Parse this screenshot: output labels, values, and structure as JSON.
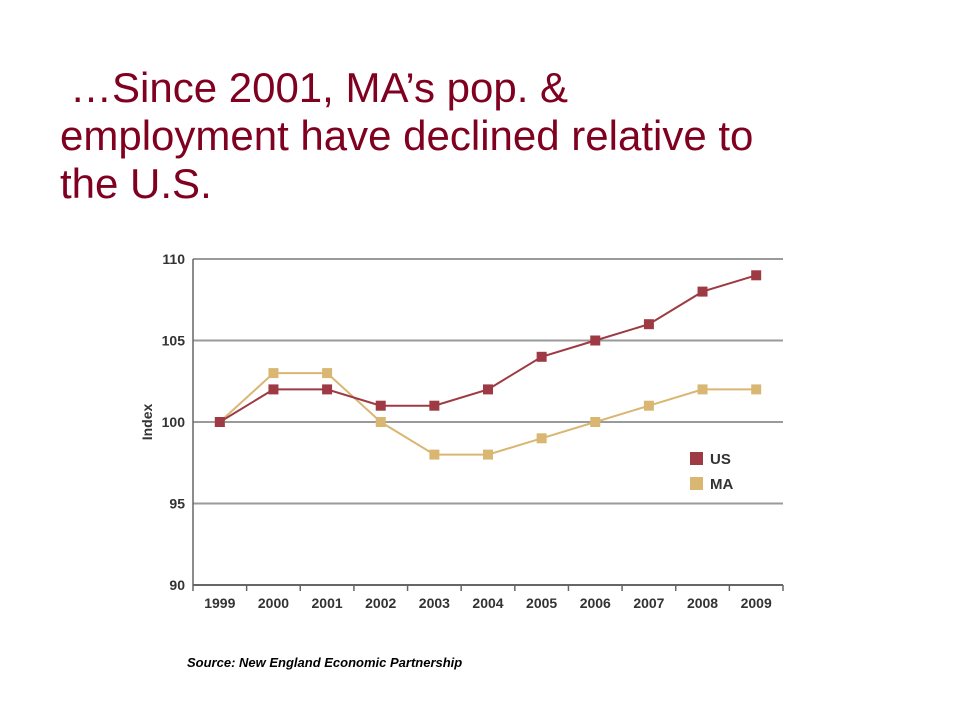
{
  "slide": {
    "title_line1": "…Since 2001, MA’s pop. &",
    "title_line2": "employment have declined relative to",
    "title_line3": "the U.S.",
    "source": "Source:  New England Economic Partnership"
  },
  "colors": {
    "title": "#800020",
    "us": "#9e3a43",
    "ma": "#d9b772",
    "grid": "#9a9a9a",
    "axis": "#666666"
  },
  "chart_data": {
    "type": "line",
    "title": "",
    "xlabel": "",
    "ylabel": "Index",
    "categories": [
      "1999",
      "2000",
      "2001",
      "2002",
      "2003",
      "2004",
      "2005",
      "2006",
      "2007",
      "2008",
      "2009"
    ],
    "ylim": [
      90,
      110
    ],
    "yticks": [
      90,
      95,
      100,
      105,
      110
    ],
    "grid": "horizontal",
    "legend_position": "right",
    "series": [
      {
        "name": "US",
        "color": "#9e3a43",
        "marker": "square",
        "values": [
          100,
          102,
          102,
          101,
          101,
          102,
          104,
          105,
          106,
          108,
          109
        ]
      },
      {
        "name": "MA",
        "color": "#d9b772",
        "marker": "square",
        "values": [
          100,
          103,
          103,
          100,
          98,
          98,
          99,
          100,
          101,
          102,
          102
        ]
      }
    ]
  }
}
